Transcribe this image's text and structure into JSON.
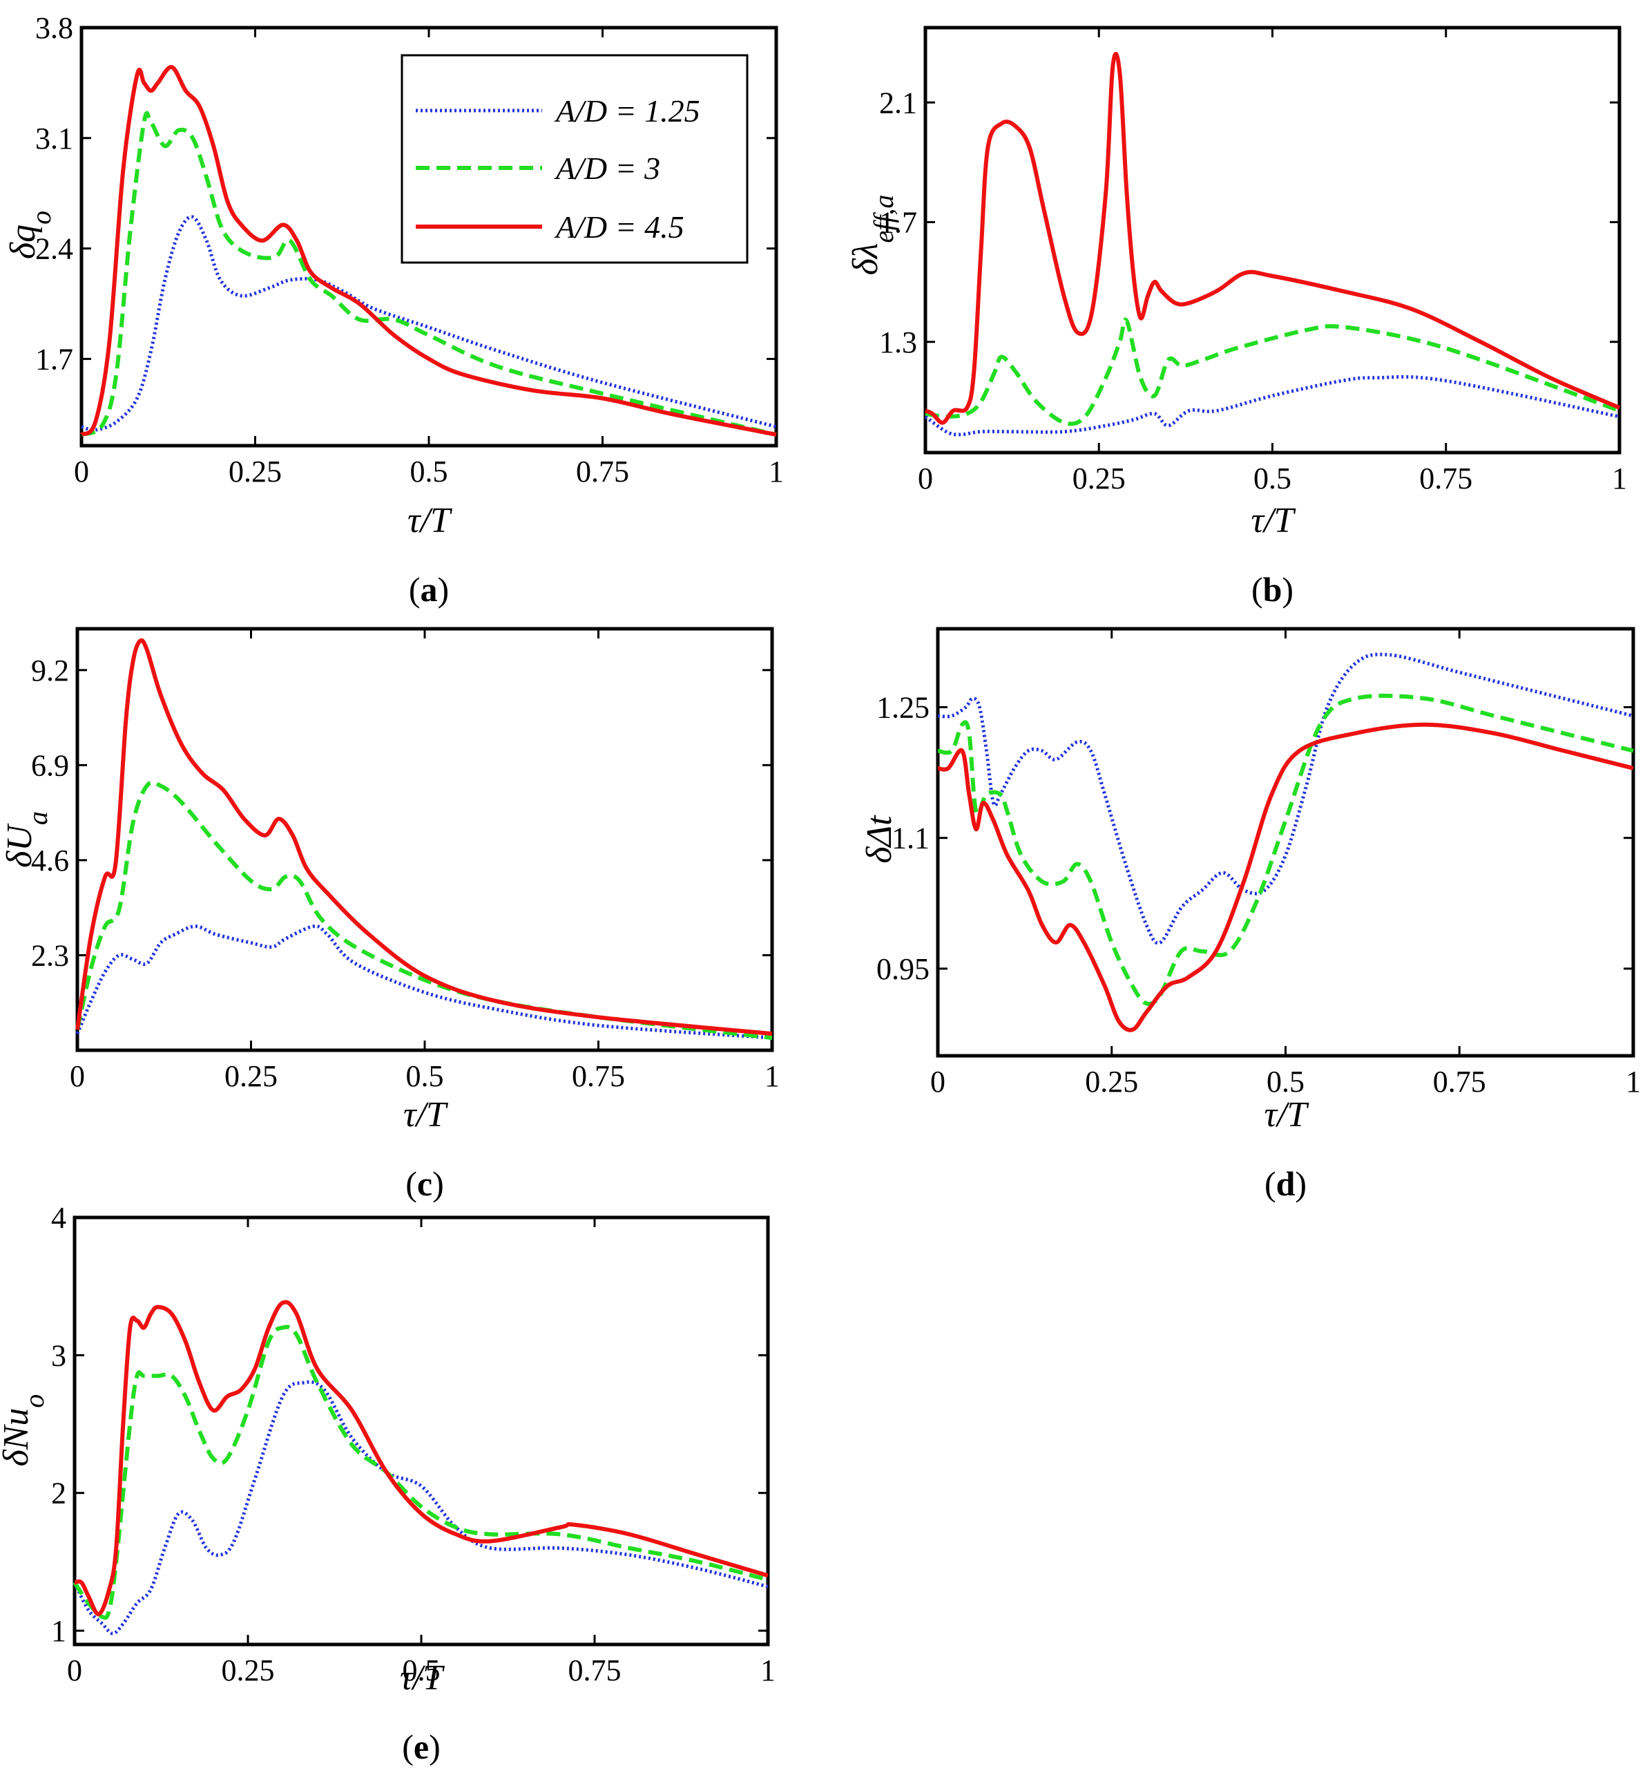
{
  "legend": {
    "entries": [
      "A/D = 1.25",
      "A/D = 3",
      "A/D = 4.5"
    ],
    "colors": [
      "#2233dd",
      "#22dd22",
      "#ee1111"
    ],
    "styles": [
      "dotted",
      "dashed",
      "solid"
    ]
  },
  "chart_data": [
    {
      "id": "a",
      "type": "line",
      "caption": "a",
      "ylabel": "δq_o",
      "xlabel": "τ/T",
      "xlim": [
        0,
        1
      ],
      "ylim": [
        1.15,
        3.8
      ],
      "xticks": [
        0,
        0.25,
        0.5,
        0.75,
        1
      ],
      "xticklabels": [
        "0",
        "0.25",
        "0.5",
        "0.75",
        "1"
      ],
      "yticks": [
        1.7,
        2.4,
        3.1,
        3.8
      ],
      "yticklabels": [
        "1.7",
        "2.4",
        "3.1",
        "3.8"
      ],
      "legend_position": "top-right",
      "series": [
        {
          "name": "A/D = 1.25",
          "x": [
            0,
            0.02,
            0.05,
            0.08,
            0.1,
            0.12,
            0.14,
            0.16,
            0.18,
            0.2,
            0.23,
            0.27,
            0.3,
            0.34,
            0.38,
            0.42,
            0.5,
            0.6,
            0.75,
            1
          ],
          "y": [
            1.27,
            1.25,
            1.3,
            1.45,
            1.75,
            2.2,
            2.5,
            2.6,
            2.45,
            2.2,
            2.1,
            2.15,
            2.2,
            2.2,
            2.12,
            2.02,
            1.9,
            1.75,
            1.55,
            1.27
          ]
        },
        {
          "name": "A/D = 3",
          "x": [
            0,
            0.03,
            0.05,
            0.07,
            0.09,
            0.1,
            0.12,
            0.14,
            0.16,
            0.18,
            0.2,
            0.22,
            0.25,
            0.28,
            0.3,
            0.33,
            0.36,
            0.4,
            0.45,
            0.5,
            0.6,
            0.75,
            1
          ],
          "y": [
            1.22,
            1.28,
            1.6,
            2.5,
            3.2,
            3.2,
            3.05,
            3.15,
            3.1,
            2.85,
            2.55,
            2.42,
            2.35,
            2.35,
            2.45,
            2.2,
            2.1,
            1.95,
            1.95,
            1.85,
            1.65,
            1.48,
            1.22
          ]
        },
        {
          "name": "A/D = 4.5",
          "x": [
            0,
            0.02,
            0.04,
            0.06,
            0.08,
            0.09,
            0.1,
            0.11,
            0.13,
            0.15,
            0.17,
            0.19,
            0.21,
            0.23,
            0.26,
            0.29,
            0.31,
            0.33,
            0.36,
            0.4,
            0.45,
            0.5,
            0.55,
            0.65,
            0.75,
            0.85,
            1
          ],
          "y": [
            1.22,
            1.3,
            1.8,
            2.9,
            3.5,
            3.45,
            3.4,
            3.45,
            3.55,
            3.4,
            3.3,
            3.05,
            2.7,
            2.55,
            2.45,
            2.55,
            2.45,
            2.25,
            2.15,
            2.05,
            1.85,
            1.7,
            1.6,
            1.5,
            1.45,
            1.35,
            1.22
          ]
        }
      ]
    },
    {
      "id": "b",
      "type": "line",
      "caption": "b",
      "ylabel": "δλ_eff,a",
      "xlabel": "τ/T",
      "xlim": [
        0,
        1
      ],
      "ylim": [
        0.93,
        2.35
      ],
      "xticks": [
        0,
        0.25,
        0.5,
        0.75,
        1
      ],
      "xticklabels": [
        "0",
        "0.25",
        "0.5",
        "0.75",
        "1"
      ],
      "yticks": [
        1.3,
        1.7,
        2.1
      ],
      "yticklabels": [
        "1.3",
        "1.7",
        "2.1"
      ],
      "series": [
        {
          "name": "A/D = 1.25",
          "x": [
            0,
            0.03,
            0.05,
            0.08,
            0.12,
            0.2,
            0.26,
            0.3,
            0.33,
            0.35,
            0.38,
            0.42,
            0.5,
            0.6,
            0.65,
            0.75,
            1
          ],
          "y": [
            1.05,
            1.0,
            0.99,
            1.0,
            1.0,
            1.0,
            1.02,
            1.04,
            1.06,
            1.02,
            1.07,
            1.07,
            1.12,
            1.17,
            1.18,
            1.17,
            1.05
          ]
        },
        {
          "name": "A/D = 3",
          "x": [
            0,
            0.03,
            0.06,
            0.08,
            0.1,
            0.11,
            0.13,
            0.16,
            0.2,
            0.23,
            0.26,
            0.28,
            0.29,
            0.31,
            0.33,
            0.35,
            0.37,
            0.4,
            0.45,
            0.55,
            0.6,
            0.7,
            0.8,
            1
          ],
          "y": [
            1.06,
            1.05,
            1.06,
            1.1,
            1.2,
            1.25,
            1.2,
            1.1,
            1.03,
            1.05,
            1.18,
            1.3,
            1.37,
            1.18,
            1.12,
            1.24,
            1.22,
            1.24,
            1.28,
            1.34,
            1.35,
            1.31,
            1.24,
            1.07
          ]
        },
        {
          "name": "A/D = 4.5",
          "x": [
            0,
            0.01,
            0.025,
            0.04,
            0.06,
            0.07,
            0.08,
            0.09,
            0.11,
            0.13,
            0.15,
            0.17,
            0.2,
            0.22,
            0.24,
            0.26,
            0.27,
            0.28,
            0.29,
            0.3,
            0.31,
            0.32,
            0.33,
            0.34,
            0.36,
            0.38,
            0.42,
            0.46,
            0.5,
            0.6,
            0.7,
            0.8,
            0.9,
            1
          ],
          "y": [
            1.07,
            1.06,
            1.03,
            1.07,
            1.08,
            1.2,
            1.6,
            1.95,
            2.03,
            2.02,
            1.95,
            1.75,
            1.45,
            1.33,
            1.4,
            1.8,
            2.22,
            2.2,
            1.8,
            1.52,
            1.38,
            1.45,
            1.5,
            1.47,
            1.43,
            1.43,
            1.47,
            1.53,
            1.52,
            1.47,
            1.41,
            1.3,
            1.18,
            1.08
          ]
        }
      ]
    },
    {
      "id": "c",
      "type": "line",
      "caption": "c",
      "ylabel": "δU_a",
      "xlabel": "τ/T",
      "xlim": [
        0,
        1
      ],
      "ylim": [
        0,
        10.2
      ],
      "xticks": [
        0,
        0.25,
        0.5,
        0.75,
        1
      ],
      "xticklabels": [
        "0",
        "0.25",
        "0.5",
        "0.75",
        "1"
      ],
      "yticks": [
        2.3,
        4.6,
        6.9,
        9.2
      ],
      "yticklabels": [
        "2.3",
        "4.6",
        "6.9",
        "9.2"
      ],
      "series": [
        {
          "name": "A/D = 1.25",
          "x": [
            0,
            0.02,
            0.04,
            0.06,
            0.08,
            0.1,
            0.12,
            0.14,
            0.17,
            0.2,
            0.25,
            0.28,
            0.3,
            0.34,
            0.36,
            0.4,
            0.5,
            0.6,
            0.75,
            1
          ],
          "y": [
            0.4,
            1.2,
            1.9,
            2.3,
            2.2,
            2.1,
            2.6,
            2.8,
            3.0,
            2.8,
            2.6,
            2.5,
            2.7,
            3.0,
            2.8,
            2.1,
            1.4,
            1.0,
            0.6,
            0.3
          ]
        },
        {
          "name": "A/D = 3",
          "x": [
            0,
            0.02,
            0.04,
            0.06,
            0.08,
            0.1,
            0.12,
            0.15,
            0.2,
            0.25,
            0.28,
            0.3,
            0.32,
            0.35,
            0.4,
            0.5,
            0.6,
            0.75,
            1
          ],
          "y": [
            0.5,
            2.0,
            3.0,
            3.4,
            5.5,
            6.4,
            6.4,
            6.0,
            5.0,
            4.1,
            3.9,
            4.2,
            4.1,
            3.2,
            2.5,
            1.7,
            1.2,
            0.8,
            0.3
          ]
        },
        {
          "name": "A/D = 4.5",
          "x": [
            0,
            0.02,
            0.04,
            0.055,
            0.07,
            0.08,
            0.09,
            0.1,
            0.12,
            0.15,
            0.18,
            0.21,
            0.24,
            0.27,
            0.29,
            0.31,
            0.33,
            0.36,
            0.42,
            0.5,
            0.6,
            0.75,
            1
          ],
          "y": [
            0.5,
            2.8,
            4.2,
            4.5,
            8.0,
            9.4,
            9.9,
            9.7,
            8.6,
            7.4,
            6.7,
            6.3,
            5.6,
            5.2,
            5.6,
            5.2,
            4.4,
            3.8,
            2.8,
            1.8,
            1.2,
            0.8,
            0.4
          ]
        }
      ]
    },
    {
      "id": "d",
      "type": "line",
      "caption": "d",
      "ylabel": "δΔt",
      "xlabel": "τ/T",
      "xlim": [
        0,
        1
      ],
      "ylim": [
        0.85,
        1.34
      ],
      "xticks": [
        0,
        0.25,
        0.5,
        0.75,
        1
      ],
      "xticklabels": [
        "0",
        "0.25",
        "0.5",
        "0.75",
        "1"
      ],
      "yticks": [
        0.95,
        1.1,
        1.25
      ],
      "yticklabels": [
        "0.95",
        "1.1",
        "1.25"
      ],
      "series": [
        {
          "name": "A/D = 1.25",
          "x": [
            0,
            0.02,
            0.04,
            0.05,
            0.06,
            0.07,
            0.08,
            0.09,
            0.11,
            0.13,
            0.15,
            0.17,
            0.2,
            0.22,
            0.24,
            0.27,
            0.3,
            0.32,
            0.35,
            0.38,
            0.41,
            0.44,
            0.47,
            0.5,
            0.53,
            0.56,
            0.6,
            0.65,
            0.75,
            0.85,
            1
          ],
          "y": [
            1.24,
            1.24,
            1.25,
            1.26,
            1.25,
            1.2,
            1.14,
            1.15,
            1.18,
            1.2,
            1.2,
            1.19,
            1.21,
            1.2,
            1.15,
            1.07,
            1.0,
            0.98,
            1.02,
            1.04,
            1.06,
            1.04,
            1.04,
            1.08,
            1.16,
            1.25,
            1.3,
            1.31,
            1.29,
            1.27,
            1.24
          ]
        },
        {
          "name": "A/D = 3",
          "x": [
            0,
            0.02,
            0.035,
            0.045,
            0.055,
            0.07,
            0.09,
            0.1,
            0.12,
            0.15,
            0.18,
            0.2,
            0.22,
            0.25,
            0.28,
            0.3,
            0.32,
            0.35,
            0.38,
            0.42,
            0.46,
            0.5,
            0.55,
            0.6,
            0.7,
            0.8,
            0.9,
            1
          ],
          "y": [
            1.2,
            1.2,
            1.23,
            1.22,
            1.13,
            1.15,
            1.15,
            1.13,
            1.08,
            1.05,
            1.05,
            1.07,
            1.05,
            0.98,
            0.93,
            0.91,
            0.92,
            0.97,
            0.97,
            0.97,
            1.03,
            1.12,
            1.23,
            1.26,
            1.26,
            1.24,
            1.22,
            1.2
          ]
        },
        {
          "name": "A/D = 4.5",
          "x": [
            0,
            0.015,
            0.035,
            0.045,
            0.055,
            0.065,
            0.08,
            0.1,
            0.13,
            0.15,
            0.17,
            0.19,
            0.21,
            0.24,
            0.26,
            0.28,
            0.3,
            0.33,
            0.36,
            0.4,
            0.44,
            0.48,
            0.52,
            0.6,
            0.7,
            0.8,
            0.9,
            1
          ],
          "y": [
            1.18,
            1.18,
            1.2,
            1.15,
            1.11,
            1.14,
            1.12,
            1.08,
            1.04,
            1.0,
            0.98,
            1.0,
            0.98,
            0.93,
            0.89,
            0.88,
            0.9,
            0.93,
            0.94,
            0.97,
            1.05,
            1.15,
            1.2,
            1.22,
            1.23,
            1.22,
            1.2,
            1.18
          ]
        }
      ]
    },
    {
      "id": "e",
      "type": "line",
      "caption": "e",
      "ylabel": "δNu_o",
      "xlabel": "τ/T",
      "xlim": [
        0,
        1
      ],
      "ylim": [
        0.9,
        4.0
      ],
      "xticks": [
        0,
        0.25,
        0.5,
        0.75,
        1
      ],
      "xticklabels": [
        "0",
        "0.25",
        "0.5",
        "0.75",
        "1"
      ],
      "yticks": [
        1,
        2,
        3,
        4
      ],
      "yticklabels": [
        "1",
        "2",
        "3",
        "4"
      ],
      "series": [
        {
          "name": "A/D = 1.25",
          "x": [
            0,
            0.02,
            0.04,
            0.055,
            0.07,
            0.09,
            0.11,
            0.13,
            0.15,
            0.17,
            0.19,
            0.21,
            0.23,
            0.26,
            0.3,
            0.33,
            0.36,
            0.4,
            0.45,
            0.5,
            0.55,
            0.6,
            0.7,
            0.8,
            0.9,
            1
          ],
          "y": [
            1.35,
            1.15,
            1.05,
            0.98,
            1.05,
            1.2,
            1.3,
            1.6,
            1.85,
            1.8,
            1.6,
            1.55,
            1.65,
            2.1,
            2.7,
            2.8,
            2.75,
            2.4,
            2.15,
            2.05,
            1.75,
            1.6,
            1.6,
            1.55,
            1.45,
            1.32
          ]
        },
        {
          "name": "A/D = 3",
          "x": [
            0,
            0.02,
            0.04,
            0.05,
            0.06,
            0.08,
            0.09,
            0.1,
            0.12,
            0.14,
            0.16,
            0.18,
            0.2,
            0.22,
            0.25,
            0.28,
            0.3,
            0.32,
            0.35,
            0.4,
            0.45,
            0.5,
            0.55,
            0.6,
            0.7,
            0.8,
            0.9,
            1
          ],
          "y": [
            1.35,
            1.2,
            1.1,
            1.15,
            1.5,
            2.5,
            2.85,
            2.85,
            2.85,
            2.85,
            2.7,
            2.45,
            2.25,
            2.25,
            2.6,
            3.1,
            3.2,
            3.15,
            2.8,
            2.35,
            2.15,
            1.9,
            1.75,
            1.7,
            1.7,
            1.6,
            1.5,
            1.37
          ]
        },
        {
          "name": "A/D = 4.5",
          "x": [
            0,
            0.01,
            0.02,
            0.035,
            0.05,
            0.06,
            0.07,
            0.08,
            0.09,
            0.1,
            0.11,
            0.12,
            0.14,
            0.16,
            0.18,
            0.2,
            0.22,
            0.24,
            0.26,
            0.28,
            0.3,
            0.32,
            0.35,
            0.4,
            0.45,
            0.5,
            0.55,
            0.6,
            0.7,
            0.72,
            0.8,
            0.9,
            1
          ],
          "y": [
            1.35,
            1.35,
            1.25,
            1.12,
            1.3,
            1.6,
            2.5,
            3.2,
            3.25,
            3.2,
            3.3,
            3.35,
            3.3,
            3.1,
            2.8,
            2.6,
            2.7,
            2.75,
            2.9,
            3.2,
            3.38,
            3.3,
            2.9,
            2.6,
            2.15,
            1.85,
            1.7,
            1.65,
            1.75,
            1.77,
            1.7,
            1.55,
            1.4
          ]
        }
      ]
    }
  ]
}
